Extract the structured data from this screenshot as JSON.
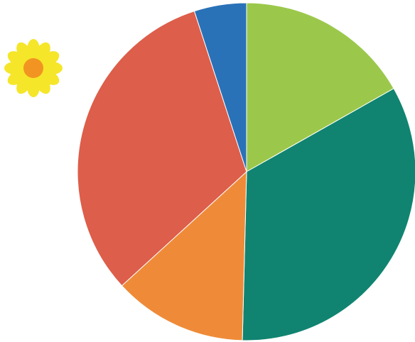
{
  "icons": {
    "decoration": "sunflower-icon"
  },
  "colors": {
    "petal": "#f5e62a",
    "flower_center": "#f29422",
    "slice_edge": "#ffffff"
  },
  "chart_data": {
    "type": "pie",
    "start_angle_deg": 0,
    "direction": "clockwise",
    "slices": [
      {
        "value": 16.8,
        "color": "#9bc84b"
      },
      {
        "value": 33.6,
        "color": "#108470"
      },
      {
        "value": 12.8,
        "color": "#ef8b38"
      },
      {
        "value": 31.8,
        "color": "#dd5e4a"
      },
      {
        "value": 5.0,
        "color": "#2a72b8"
      }
    ]
  }
}
